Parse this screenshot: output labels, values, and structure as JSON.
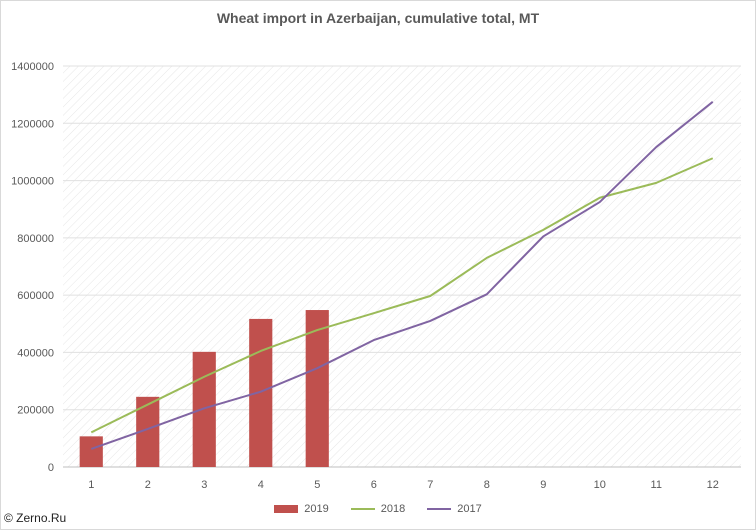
{
  "chart_data": {
    "type": "bar",
    "title": "Wheat import in Azerbaijan, cumulative total, MT",
    "xlabel": "",
    "ylabel": "",
    "categories": [
      "1",
      "2",
      "3",
      "4",
      "5",
      "6",
      "7",
      "8",
      "9",
      "10",
      "11",
      "12"
    ],
    "ylim": [
      0,
      1400000
    ],
    "yticks": [
      0,
      200000,
      400000,
      600000,
      800000,
      1000000,
      1200000,
      1400000
    ],
    "grid": "hatched plot area",
    "legend_position": "bottom",
    "series": [
      {
        "name": "2019",
        "type": "bar",
        "color": "#c0504d",
        "values": [
          107000,
          245000,
          402000,
          517000,
          548000,
          null,
          null,
          null,
          null,
          null,
          null,
          null
        ]
      },
      {
        "name": "2018",
        "type": "line",
        "color": "#9bbb59",
        "values": [
          121000,
          218000,
          315000,
          405000,
          478000,
          537000,
          597000,
          730000,
          828000,
          940000,
          992000,
          1078000
        ]
      },
      {
        "name": "2017",
        "type": "line",
        "color": "#8064a2",
        "values": [
          63000,
          133000,
          205000,
          263000,
          345000,
          443000,
          510000,
          603000,
          805000,
          925000,
          1117000,
          1275000
        ]
      }
    ]
  },
  "watermark": "© Zerno.Ru"
}
